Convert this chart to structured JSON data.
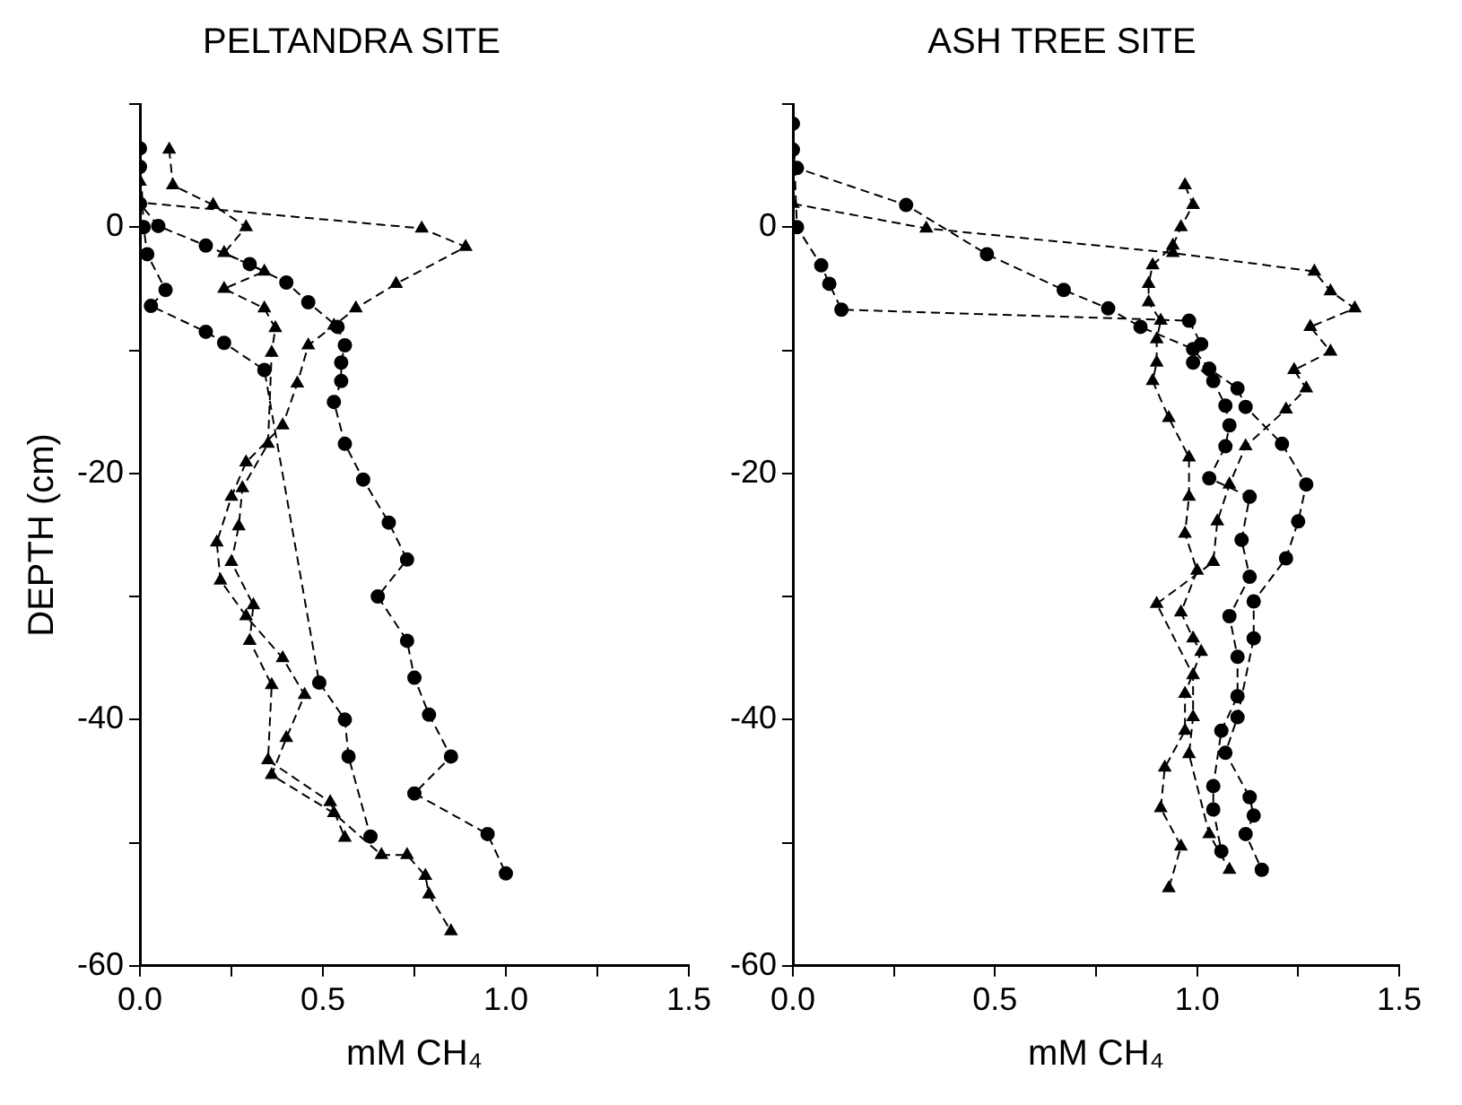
{
  "chart_data": [
    {
      "type": "line",
      "title": "PELTANDRA SITE",
      "xlabel": "mM CH₄",
      "ylabel": "DEPTH (cm)",
      "xlim": [
        0,
        1.5
      ],
      "ylim": [
        -60,
        10
      ],
      "xticks": [
        {
          "value": 0,
          "label": "0.0"
        },
        {
          "value": 0.25,
          "label": null
        },
        {
          "value": 0.5,
          "label": "0.5"
        },
        {
          "value": 0.75,
          "label": null
        },
        {
          "value": 1,
          "label": "1.0"
        },
        {
          "value": 1.25,
          "label": null
        },
        {
          "value": 1.5,
          "label": "1.5"
        }
      ],
      "yticks": [
        -60,
        {
          "value": -50,
          "label": null
        },
        -40,
        {
          "value": -30,
          "label": null
        },
        -20,
        {
          "value": -10,
          "label": null
        },
        0,
        {
          "value": 10,
          "label": null
        }
      ],
      "grid": false,
      "legend": false,
      "line_style": "dashed",
      "series": [
        {
          "color": "#000000",
          "marker": "circle",
          "x": [
            0,
            0,
            0.05,
            0.18,
            0.3,
            0.4,
            0.46,
            0.54,
            0.56,
            0.55,
            0.55,
            0.53,
            0.56,
            0.61,
            0.68,
            0.73,
            0.65,
            0.73,
            0.75,
            0.79,
            0.85,
            0.75,
            0.95,
            1.0
          ],
          "values": [
            4.9,
            1.9,
            0.1,
            -1.5,
            -3,
            -4.5,
            -6.1,
            -8.1,
            -9.6,
            -11,
            -12.5,
            -14.2,
            -17.6,
            -20.5,
            -24,
            -27,
            -30,
            -33.6,
            -36.6,
            -39.6,
            -43,
            -46,
            -49.3,
            -52.5
          ]
        },
        {
          "color": "#000000",
          "marker": "circle",
          "x": [
            0,
            0.01,
            0.02,
            0.07,
            0.03,
            0.18,
            0.23,
            0.34,
            0.49,
            0.56,
            0.57,
            0.63
          ],
          "values": [
            6.4,
            0,
            -2.2,
            -5.1,
            -6.4,
            -8.5,
            -9.4,
            -11.6,
            -37,
            -40,
            -43,
            -49.5
          ]
        },
        {
          "color": "#000000",
          "marker": "triangle",
          "x": [
            0,
            0,
            0.77,
            0.89,
            0.7,
            0.59,
            0.53,
            0.46,
            0.43,
            0.39,
            0.29,
            0.25,
            0.21,
            0.22,
            0.29,
            0.39,
            0.45,
            0.4,
            0.36,
            0.53,
            0.66,
            0.73,
            0.78,
            0.79,
            0.85
          ],
          "values": [
            3.7,
            2,
            -0.1,
            -1.6,
            -4.6,
            -6.6,
            -8,
            -9.6,
            -12.7,
            -16.1,
            -19.1,
            -21.9,
            -25.6,
            -28.7,
            -31.6,
            -35,
            -38,
            -41.5,
            -44.5,
            -47.6,
            -51,
            -51,
            -52.7,
            -54.2,
            -57.2
          ]
        },
        {
          "color": "#000000",
          "marker": "triangle",
          "x": [
            0.08,
            0.09,
            0.2,
            0.29,
            0.23,
            0.34,
            0.23,
            0.34,
            0.37,
            0.36,
            0.35,
            0.28,
            0.27,
            0.25,
            0.31,
            0.3,
            0.36,
            0.35,
            0.52,
            0.56
          ],
          "values": [
            6.3,
            3.4,
            1.8,
            0,
            -2.1,
            -3.6,
            -5,
            -6.6,
            -8.2,
            -10.2,
            -17.6,
            -21.2,
            -24.3,
            -27.2,
            -30.7,
            -33.6,
            -37.2,
            -43.3,
            -46.7,
            -49.6
          ]
        }
      ]
    },
    {
      "type": "line",
      "title": "ASH TREE SITE",
      "xlabel": "mM CH₄",
      "xlim": [
        0,
        1.5
      ],
      "ylim": [
        -60,
        10
      ],
      "xticks": [
        {
          "value": 0,
          "label": "0.0"
        },
        {
          "value": 0.25,
          "label": null
        },
        {
          "value": 0.5,
          "label": "0.5"
        },
        {
          "value": 0.75,
          "label": null
        },
        {
          "value": 1,
          "label": "1.0"
        },
        {
          "value": 1.25,
          "label": null
        },
        {
          "value": 1.5,
          "label": "1.5"
        }
      ],
      "yticks": [
        -60,
        {
          "value": -50,
          "label": null
        },
        -40,
        {
          "value": -30,
          "label": null
        },
        -20,
        {
          "value": -10,
          "label": null
        },
        0,
        {
          "value": 10,
          "label": null
        }
      ],
      "grid": false,
      "legend": false,
      "line_style": "dashed",
      "series": [
        {
          "color": "#000000",
          "marker": "circle",
          "x": [
            0,
            0.01,
            0.28,
            0.48,
            0.67,
            0.78,
            0.86,
            0.99,
            1.03,
            1.1,
            1.12,
            1.21,
            1.27,
            1.25,
            1.22,
            1.14,
            1.14,
            1.1,
            1.07,
            1.13,
            1.14,
            1.12,
            1.16
          ],
          "values": [
            6.3,
            4.8,
            1.8,
            -2.2,
            -5.1,
            -6.6,
            -8.1,
            -9.9,
            -11.5,
            -13.1,
            -14.6,
            -17.6,
            -20.9,
            -23.9,
            -26.9,
            -30.4,
            -33.4,
            -39.8,
            -42.7,
            -46.3,
            -47.8,
            -49.3,
            -52.2
          ]
        },
        {
          "color": "#000000",
          "marker": "circle",
          "x": [
            0,
            0.01,
            0.07,
            0.09,
            0.12,
            0.98,
            1.01,
            0.99,
            1.04,
            1.07,
            1.08,
            1.07,
            1.03,
            1.13,
            1.11,
            1.13,
            1.08,
            1.1,
            1.1,
            1.06,
            1.04,
            1.04,
            1.06
          ],
          "values": [
            8.4,
            0,
            -3.1,
            -4.6,
            -6.7,
            -7.6,
            -9.5,
            -11,
            -12.5,
            -14.5,
            -16.1,
            -17.8,
            -20.4,
            -21.9,
            -25.4,
            -28.4,
            -31.6,
            -34.9,
            -38.1,
            -40.9,
            -45.4,
            -47.3,
            -50.7
          ]
        },
        {
          "color": "#000000",
          "marker": "triangle",
          "x": [
            0.97,
            0.99,
            0.96,
            0.94,
            0.89,
            0.88,
            0.88,
            0.91,
            0.9,
            0.9,
            0.89,
            0.93,
            0.98,
            0.98,
            0.97,
            1.0,
            0.96,
            0.99,
            1.01,
            0.97,
            0.97,
            0.92,
            0.91,
            0.96,
            0.93
          ],
          "values": [
            3.4,
            1.8,
            0,
            -1.5,
            -3.1,
            -4.6,
            -6.1,
            -7.6,
            -9.1,
            -11,
            -12.5,
            -15.5,
            -18.7,
            -21.9,
            -24.9,
            -27.9,
            -31.3,
            -33.4,
            -34.5,
            -37.9,
            -40.9,
            -43.9,
            -47.2,
            -50.3,
            -53.7
          ]
        },
        {
          "color": "#000000",
          "marker": "triangle",
          "x": [
            0,
            0.33,
            0.94,
            1.29,
            1.33,
            1.39,
            1.28,
            1.33,
            1.24,
            1.27,
            1.22,
            1.12,
            1.08,
            1.05,
            1.04,
            0.9,
            0.99,
            0.99,
            0.98,
            1.03,
            1.08
          ],
          "values": [
            1.9,
            -0.1,
            -2.1,
            -3.6,
            -5.2,
            -6.6,
            -8.1,
            -10.1,
            -11.6,
            -13.1,
            -14.8,
            -17.8,
            -20.9,
            -23.9,
            -27.2,
            -30.6,
            -36.4,
            -39.8,
            -42.8,
            -49.3,
            -52.2
          ]
        }
      ]
    }
  ]
}
